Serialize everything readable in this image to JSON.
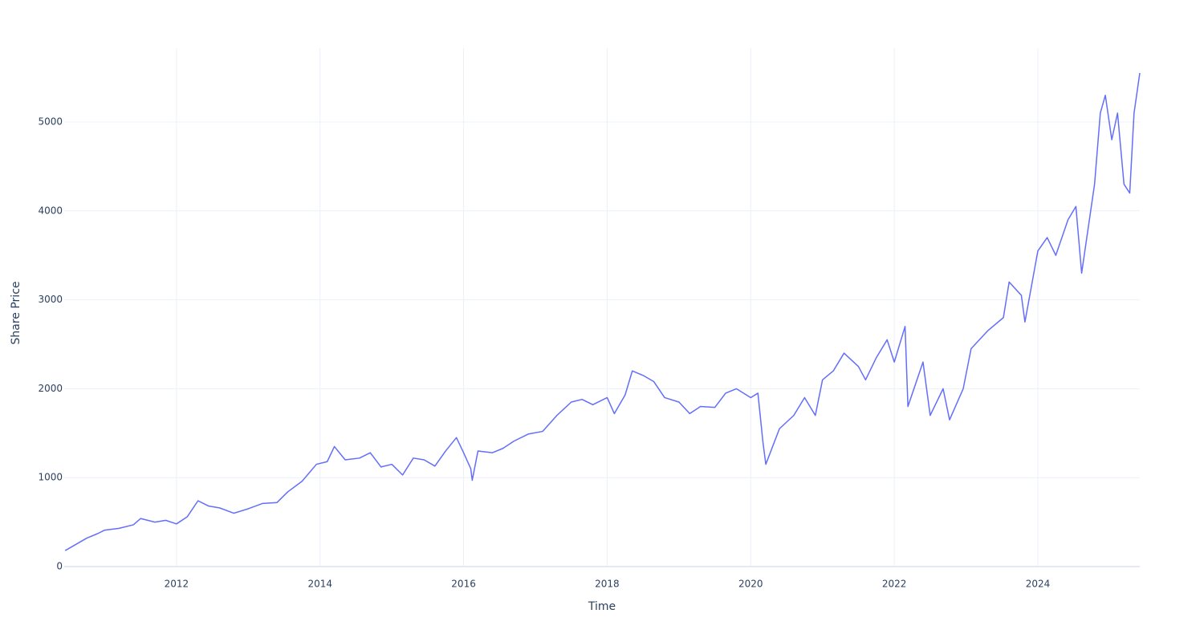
{
  "chart_data": {
    "type": "line",
    "xlabel": "Time",
    "ylabel": "Share Price",
    "x": [
      2010.45,
      2010.6,
      2010.75,
      2010.9,
      2011.0,
      2011.2,
      2011.4,
      2011.5,
      2011.7,
      2011.85,
      2012.0,
      2012.15,
      2012.3,
      2012.45,
      2012.6,
      2012.8,
      2013.0,
      2013.2,
      2013.4,
      2013.55,
      2013.75,
      2013.95,
      2014.1,
      2014.2,
      2014.35,
      2014.55,
      2014.7,
      2014.85,
      2015.0,
      2015.15,
      2015.3,
      2015.45,
      2015.6,
      2015.75,
      2015.9,
      2016.0,
      2016.1,
      2016.12,
      2016.2,
      2016.4,
      2016.55,
      2016.7,
      2016.9,
      2017.1,
      2017.3,
      2017.5,
      2017.65,
      2017.8,
      2018.0,
      2018.1,
      2018.25,
      2018.35,
      2018.5,
      2018.65,
      2018.8,
      2019.0,
      2019.15,
      2019.3,
      2019.5,
      2019.65,
      2019.8,
      2020.0,
      2020.1,
      2020.17,
      2020.21,
      2020.4,
      2020.6,
      2020.75,
      2020.9,
      2021.0,
      2021.15,
      2021.3,
      2021.5,
      2021.6,
      2021.75,
      2021.9,
      2022.0,
      2022.15,
      2022.19,
      2022.4,
      2022.5,
      2022.68,
      2022.77,
      2022.96,
      2023.07,
      2023.3,
      2023.52,
      2023.6,
      2023.77,
      2023.82,
      2023.91,
      2024.0,
      2024.13,
      2024.25,
      2024.42,
      2024.53,
      2024.61,
      2024.7,
      2024.79,
      2024.87,
      2024.94,
      2025.03,
      2025.11,
      2025.2,
      2025.28,
      2025.34,
      2025.42
    ],
    "series": [
      {
        "name": "Share Price",
        "color": "#636efa",
        "values": [
          180,
          250,
          320,
          370,
          410,
          430,
          470,
          540,
          500,
          520,
          480,
          560,
          740,
          680,
          660,
          600,
          650,
          710,
          720,
          840,
          960,
          1150,
          1180,
          1350,
          1200,
          1220,
          1280,
          1120,
          1150,
          1030,
          1220,
          1200,
          1130,
          1300,
          1450,
          1280,
          1100,
          970,
          1300,
          1280,
          1330,
          1410,
          1490,
          1520,
          1700,
          1850,
          1880,
          1820,
          1900,
          1720,
          1930,
          2200,
          2150,
          2080,
          1900,
          1850,
          1720,
          1800,
          1790,
          1950,
          2000,
          1900,
          1950,
          1400,
          1150,
          1550,
          1700,
          1900,
          1700,
          2100,
          2200,
          2400,
          2250,
          2100,
          2350,
          2550,
          2300,
          2700,
          1800,
          2300,
          1700,
          2000,
          1650,
          2000,
          2450,
          2650,
          2800,
          3200,
          3050,
          2750,
          3150,
          3550,
          3700,
          3500,
          3900,
          4050,
          3300,
          3800,
          4300,
          5100,
          5300,
          4800,
          5100,
          4300,
          4200,
          5100,
          5550
        ]
      }
    ],
    "xlim": [
      2010.436,
      2025.42
    ],
    "xticks": [
      2012,
      2014,
      2016,
      2018,
      2020,
      2022,
      2024
    ],
    "ylim": [
      0,
      5830
    ],
    "yticks": [
      0,
      1000,
      2000,
      3000,
      4000,
      5000
    ],
    "grid": true
  }
}
